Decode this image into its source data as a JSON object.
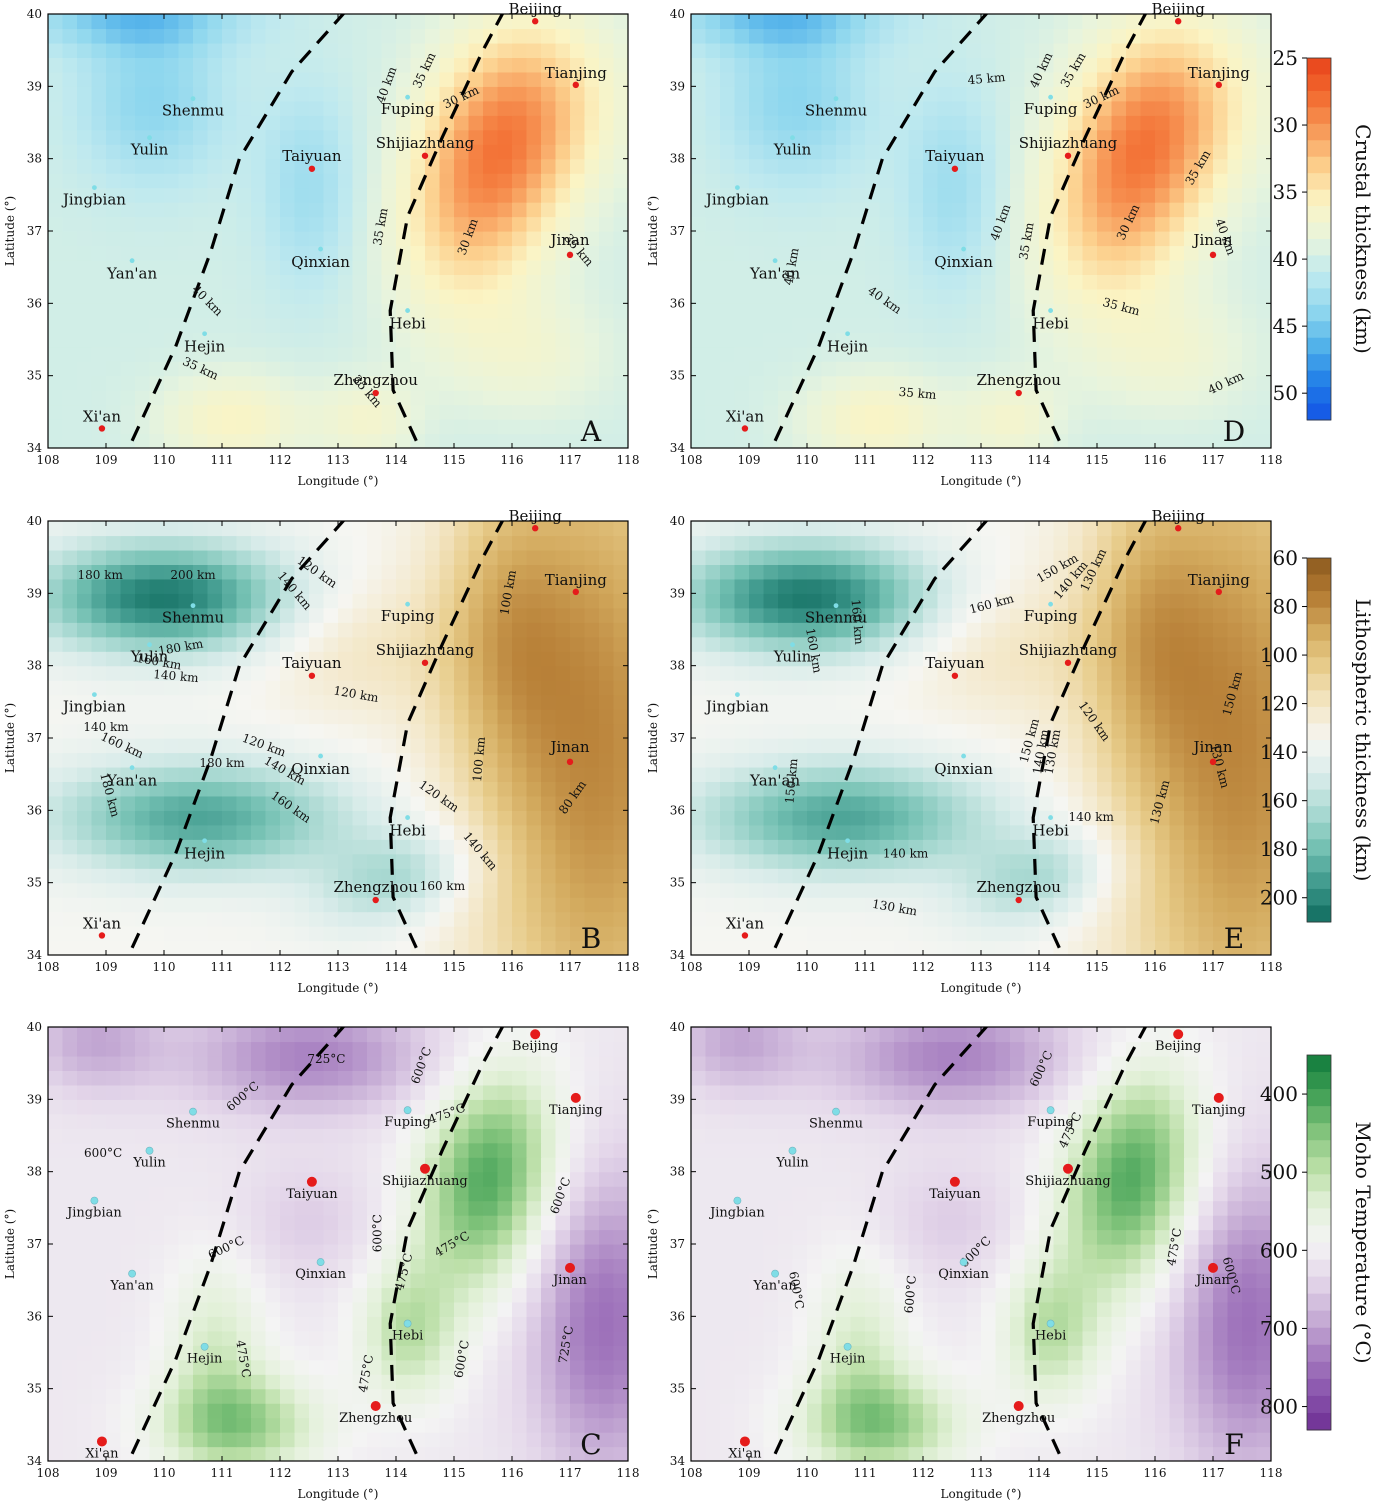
{
  "axes": {
    "xlabel": "Longitude (°)",
    "ylabel": "Latitude (°)",
    "xticks": [
      "108",
      "109",
      "110",
      "111",
      "112",
      "113",
      "114",
      "115",
      "116",
      "117",
      "118"
    ],
    "yticks": [
      "34",
      "35",
      "36",
      "37",
      "38",
      "39",
      "40"
    ],
    "xlim": [
      108,
      118
    ],
    "ylim": [
      34,
      40
    ]
  },
  "cities": [
    {
      "name": "Beijing",
      "lon": 116.4,
      "lat": 39.9,
      "type": "major"
    },
    {
      "name": "Tianjing",
      "lon": 117.1,
      "lat": 39.02,
      "type": "major"
    },
    {
      "name": "Shijiazhuang",
      "lon": 114.5,
      "lat": 38.04,
      "type": "major"
    },
    {
      "name": "Taiyuan",
      "lon": 112.55,
      "lat": 37.86,
      "type": "major"
    },
    {
      "name": "Jinan",
      "lon": 117.0,
      "lat": 36.67,
      "type": "major"
    },
    {
      "name": "Zhengzhou",
      "lon": 113.65,
      "lat": 34.76,
      "type": "major"
    },
    {
      "name": "Xi'an",
      "lon": 108.93,
      "lat": 34.27,
      "type": "major"
    },
    {
      "name": "Shenmu",
      "lon": 110.5,
      "lat": 38.83,
      "type": "minor"
    },
    {
      "name": "Yulin",
      "lon": 109.75,
      "lat": 38.29,
      "type": "minor"
    },
    {
      "name": "Jingbian",
      "lon": 108.8,
      "lat": 37.6,
      "type": "minor"
    },
    {
      "name": "Yan'an",
      "lon": 109.45,
      "lat": 36.59,
      "type": "minor"
    },
    {
      "name": "Hejin",
      "lon": 110.7,
      "lat": 35.58,
      "type": "minor"
    },
    {
      "name": "Qinxian",
      "lon": 112.7,
      "lat": 36.75,
      "type": "minor"
    },
    {
      "name": "Hebi",
      "lon": 114.2,
      "lat": 35.9,
      "type": "minor"
    },
    {
      "name": "Fuping",
      "lon": 114.2,
      "lat": 38.85,
      "type": "minor"
    }
  ],
  "panels": [
    {
      "letter": "A",
      "scheme": "crust",
      "contour_labels": [
        {
          "t": "40 km",
          "lon": 113.9,
          "lat": 39.0,
          "r": -70
        },
        {
          "t": "35 km",
          "lon": 114.55,
          "lat": 39.2,
          "r": -65
        },
        {
          "t": "30 km",
          "lon": 115.15,
          "lat": 38.8,
          "r": -25
        },
        {
          "t": "30 km",
          "lon": 115.3,
          "lat": 36.9,
          "r": -70
        },
        {
          "t": "35 km",
          "lon": 117.1,
          "lat": 36.7,
          "r": 50
        },
        {
          "t": "35 km",
          "lon": 113.8,
          "lat": 37.05,
          "r": -80
        },
        {
          "t": "40 km",
          "lon": 110.7,
          "lat": 36.0,
          "r": 45
        },
        {
          "t": "35 km",
          "lon": 110.6,
          "lat": 35.05,
          "r": 25
        },
        {
          "t": "35 km",
          "lon": 113.45,
          "lat": 34.75,
          "r": 50
        }
      ]
    },
    {
      "letter": "B",
      "scheme": "litho",
      "contour_labels": [
        {
          "t": "180 km",
          "lon": 108.9,
          "lat": 39.2,
          "r": 0
        },
        {
          "t": "200 km",
          "lon": 110.5,
          "lat": 39.2,
          "r": 0
        },
        {
          "t": "120 km",
          "lon": 112.6,
          "lat": 39.25,
          "r": 35
        },
        {
          "t": "140 km",
          "lon": 112.2,
          "lat": 39.0,
          "r": 50
        },
        {
          "t": "180 km",
          "lon": 110.3,
          "lat": 38.2,
          "r": -10
        },
        {
          "t": "160 km",
          "lon": 109.9,
          "lat": 38.0,
          "r": 10
        },
        {
          "t": "140 km",
          "lon": 110.2,
          "lat": 37.8,
          "r": 5
        },
        {
          "t": "120 km",
          "lon": 113.3,
          "lat": 37.55,
          "r": 10
        },
        {
          "t": "100 km",
          "lon": 116.0,
          "lat": 39.0,
          "r": -80
        },
        {
          "t": "140 km",
          "lon": 109.0,
          "lat": 37.1,
          "r": 0
        },
        {
          "t": "160 km",
          "lon": 109.25,
          "lat": 36.85,
          "r": 25
        },
        {
          "t": "180 km",
          "lon": 109.0,
          "lat": 36.2,
          "r": 75
        },
        {
          "t": "180 km",
          "lon": 111.0,
          "lat": 36.6,
          "r": 0
        },
        {
          "t": "120 km",
          "lon": 111.7,
          "lat": 36.85,
          "r": 20
        },
        {
          "t": "140 km",
          "lon": 112.05,
          "lat": 36.5,
          "r": 30
        },
        {
          "t": "160 km",
          "lon": 112.15,
          "lat": 36.0,
          "r": 35
        },
        {
          "t": "120 km",
          "lon": 114.7,
          "lat": 36.15,
          "r": 35
        },
        {
          "t": "100 km",
          "lon": 115.5,
          "lat": 36.7,
          "r": -85
        },
        {
          "t": "80 km",
          "lon": 117.1,
          "lat": 36.15,
          "r": -55
        },
        {
          "t": "140 km",
          "lon": 115.4,
          "lat": 35.4,
          "r": 50
        },
        {
          "t": "160 km",
          "lon": 114.8,
          "lat": 34.9,
          "r": 0
        }
      ]
    },
    {
      "letter": "C",
      "scheme": "moho",
      "contour_labels": [
        {
          "t": "725°C",
          "lon": 112.8,
          "lat": 39.5,
          "r": 0
        },
        {
          "t": "600°C",
          "lon": 111.4,
          "lat": 39.0,
          "r": -40
        },
        {
          "t": "600°C",
          "lon": 114.5,
          "lat": 39.45,
          "r": -70
        },
        {
          "t": "475°C",
          "lon": 114.9,
          "lat": 38.75,
          "r": -20
        },
        {
          "t": "600°C",
          "lon": 108.95,
          "lat": 38.2,
          "r": 0
        },
        {
          "t": "600°C",
          "lon": 111.1,
          "lat": 36.9,
          "r": -25
        },
        {
          "t": "600°C",
          "lon": 113.75,
          "lat": 37.15,
          "r": -90
        },
        {
          "t": "475°C",
          "lon": 115.0,
          "lat": 36.95,
          "r": -30
        },
        {
          "t": "475°C",
          "lon": 114.2,
          "lat": 36.6,
          "r": -75
        },
        {
          "t": "600°C",
          "lon": 116.9,
          "lat": 37.65,
          "r": -70
        },
        {
          "t": "475°C",
          "lon": 111.3,
          "lat": 35.4,
          "r": 80
        },
        {
          "t": "475°C",
          "lon": 113.55,
          "lat": 35.2,
          "r": -80
        },
        {
          "t": "600°C",
          "lon": 115.2,
          "lat": 35.4,
          "r": -80
        },
        {
          "t": "725°C",
          "lon": 117.0,
          "lat": 35.6,
          "r": -80
        }
      ]
    },
    {
      "letter": "D",
      "scheme": "crust",
      "contour_labels": [
        {
          "t": "45 km",
          "lon": 113.1,
          "lat": 39.05,
          "r": -5
        },
        {
          "t": "40 km",
          "lon": 114.1,
          "lat": 39.2,
          "r": -65
        },
        {
          "t": "35 km",
          "lon": 114.65,
          "lat": 39.2,
          "r": -60
        },
        {
          "t": "30 km",
          "lon": 115.1,
          "lat": 38.8,
          "r": -25
        },
        {
          "t": "35 km",
          "lon": 116.8,
          "lat": 37.85,
          "r": -60
        },
        {
          "t": "30 km",
          "lon": 115.6,
          "lat": 37.1,
          "r": -65
        },
        {
          "t": "40 km",
          "lon": 117.15,
          "lat": 36.9,
          "r": 70
        },
        {
          "t": "40 km",
          "lon": 113.4,
          "lat": 37.1,
          "r": -70
        },
        {
          "t": "35 km",
          "lon": 113.85,
          "lat": 36.85,
          "r": -80
        },
        {
          "t": "40 km",
          "lon": 109.8,
          "lat": 36.5,
          "r": -80
        },
        {
          "t": "40 km",
          "lon": 111.3,
          "lat": 36.0,
          "r": 35
        },
        {
          "t": "35 km",
          "lon": 115.4,
          "lat": 35.9,
          "r": 15
        },
        {
          "t": "35 km",
          "lon": 111.9,
          "lat": 34.7,
          "r": 5
        },
        {
          "t": "40 km",
          "lon": 117.25,
          "lat": 34.85,
          "r": -25
        }
      ]
    },
    {
      "letter": "E",
      "scheme": "litho",
      "contour_labels": [
        {
          "t": "150 km",
          "lon": 114.35,
          "lat": 39.3,
          "r": -30
        },
        {
          "t": "140 km",
          "lon": 114.6,
          "lat": 39.15,
          "r": -50
        },
        {
          "t": "130 km",
          "lon": 115.0,
          "lat": 39.3,
          "r": -65
        },
        {
          "t": "160 km",
          "lon": 113.2,
          "lat": 38.8,
          "r": -15
        },
        {
          "t": "160 km",
          "lon": 110.8,
          "lat": 38.6,
          "r": 85
        },
        {
          "t": "160 km",
          "lon": 110.05,
          "lat": 38.2,
          "r": 80
        },
        {
          "t": "150 km",
          "lon": 113.9,
          "lat": 36.95,
          "r": -75
        },
        {
          "t": "140 km",
          "lon": 114.1,
          "lat": 36.8,
          "r": -80
        },
        {
          "t": "130 km",
          "lon": 114.3,
          "lat": 36.8,
          "r": -80
        },
        {
          "t": "120 km",
          "lon": 114.9,
          "lat": 37.2,
          "r": 55
        },
        {
          "t": "150 km",
          "lon": 117.4,
          "lat": 37.6,
          "r": -75
        },
        {
          "t": "130 km",
          "lon": 117.05,
          "lat": 36.6,
          "r": 75
        },
        {
          "t": "150 km",
          "lon": 109.8,
          "lat": 36.4,
          "r": -85
        },
        {
          "t": "130 km",
          "lon": 116.15,
          "lat": 36.1,
          "r": -75
        },
        {
          "t": "140 km",
          "lon": 114.9,
          "lat": 35.85,
          "r": 0
        },
        {
          "t": "140 km",
          "lon": 111.7,
          "lat": 35.35,
          "r": 0
        },
        {
          "t": "130 km",
          "lon": 111.5,
          "lat": 34.6,
          "r": 10
        }
      ]
    },
    {
      "letter": "F",
      "scheme": "moho",
      "contour_labels": [
        {
          "t": "600°C",
          "lon": 114.1,
          "lat": 39.4,
          "r": -65
        },
        {
          "t": "475°C",
          "lon": 114.6,
          "lat": 38.55,
          "r": -65
        },
        {
          "t": "600°C",
          "lon": 112.95,
          "lat": 36.85,
          "r": -45
        },
        {
          "t": "600°C",
          "lon": 111.85,
          "lat": 36.3,
          "r": -85
        },
        {
          "t": "600°C",
          "lon": 109.75,
          "lat": 36.35,
          "r": 80
        },
        {
          "t": "475°C",
          "lon": 116.4,
          "lat": 36.95,
          "r": -80
        },
        {
          "t": "600°C",
          "lon": 117.25,
          "lat": 36.55,
          "r": 75
        }
      ]
    }
  ],
  "colorbars": [
    {
      "id": "crust",
      "label": "Crustal thickness (km)",
      "ticks": [
        "25",
        "30",
        "35",
        "40",
        "45",
        "50"
      ],
      "min": 25,
      "max": 52,
      "colors": [
        "#e8421a",
        "#f2692e",
        "#f79a59",
        "#fccf8c",
        "#fbf4c4",
        "#e8f4dd",
        "#bfe9ef",
        "#8fd7ee",
        "#4fb0ea",
        "#1f7de8",
        "#1452e6"
      ]
    },
    {
      "id": "litho",
      "label": "Lithospheric thickness (km)",
      "ticks": [
        "60",
        "80",
        "100",
        "120",
        "140",
        "160",
        "180",
        "200"
      ],
      "min": 60,
      "max": 210,
      "colors": [
        "#8a5a1e",
        "#b47a32",
        "#d3aa5e",
        "#e8cd8c",
        "#f3e6c4",
        "#f6f6f2",
        "#d9ecea",
        "#a9d9d2",
        "#73c0b2",
        "#3c978b",
        "#0e6a5d"
      ]
    },
    {
      "id": "moho",
      "label": "Moho Temperature (°C)",
      "ticks": [
        "400",
        "500",
        "600",
        "700",
        "800"
      ],
      "min": 350,
      "max": 830,
      "colors": [
        "#0f7a3c",
        "#3e9e54",
        "#7fc27a",
        "#b9dea5",
        "#e3f1d9",
        "#f4f4f4",
        "#e4d7ea",
        "#c7aed6",
        "#a67ec0",
        "#8a55ad",
        "#6d2e93"
      ]
    }
  ],
  "colors": {
    "fault_line": "#000000",
    "major_city": "#e51b1b",
    "minor_city": "#7fdde6"
  }
}
